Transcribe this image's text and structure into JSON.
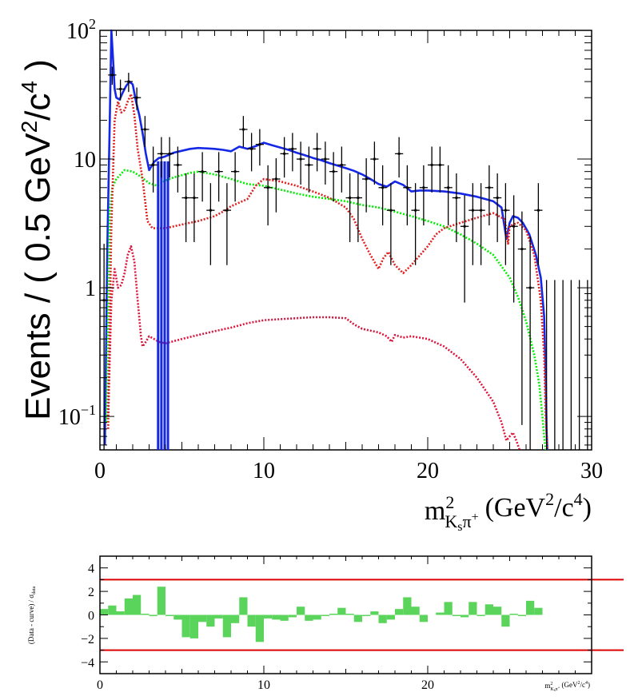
{
  "chart_data": [
    {
      "type": "line",
      "ylabel_main": "Events / ( 0.5 GeV",
      "ylabel_sup1": "2",
      "ylabel_mid": "/c",
      "ylabel_sup2": "4",
      "ylabel_end": " )",
      "xlabel_base": "m",
      "xlabel_sup": "2",
      "xlabel_sub": "K",
      "xlabel_subsub": "s",
      "xlabel_pi": "π",
      "xlabel_plus": "+",
      "xlabel_units_a": "(GeV",
      "xlabel_units_sup1": "2",
      "xlabel_units_b": "/c",
      "xlabel_units_sup2": "4",
      "xlabel_units_c": ")",
      "xlim": [
        0,
        30
      ],
      "ylim": [
        0.055,
        100
      ],
      "yscale": "log",
      "x_ticks": [
        "0",
        "10",
        "20",
        "30"
      ],
      "y_ticks": [
        {
          "value": 100,
          "base": "10",
          "exp": "2"
        },
        {
          "value": 10,
          "base": "10",
          "exp": ""
        },
        {
          "value": 1,
          "base": "1",
          "exp": ""
        },
        {
          "value": 0.1,
          "base": "10",
          "exp": "−1"
        }
      ],
      "series": [
        {
          "style": "data-points",
          "color": "#000000",
          "x": [
            0.25,
            0.75,
            1.25,
            1.75,
            2.25,
            2.75,
            3.25,
            3.75,
            4.25,
            4.75,
            5.25,
            5.75,
            6.25,
            6.75,
            7.25,
            7.75,
            8.25,
            8.75,
            9.25,
            9.75,
            10.25,
            10.75,
            11.25,
            11.75,
            12.25,
            12.75,
            13.25,
            13.75,
            14.25,
            14.75,
            15.25,
            15.75,
            16.25,
            16.75,
            17.25,
            17.75,
            18.25,
            18.75,
            19.25,
            19.75,
            20.25,
            20.75,
            21.25,
            21.75,
            22.25,
            22.75,
            23.25,
            23.75,
            24.25,
            24.75,
            25.25,
            25.75,
            26.25,
            26.75
          ],
          "y": [
            0.8,
            45,
            35,
            40,
            30,
            17,
            9,
            11,
            11,
            9,
            5,
            5,
            8,
            4,
            8,
            4,
            8,
            17,
            12,
            13,
            6,
            7,
            11,
            12,
            10,
            9,
            12,
            10,
            8,
            9,
            5,
            5,
            7,
            10,
            6,
            4,
            11,
            6,
            4,
            6,
            9,
            9,
            6,
            5,
            3,
            4,
            4,
            6,
            5,
            4,
            3,
            2,
            1,
            4
          ]
        },
        {
          "style": "solid",
          "color": "#1428e6",
          "x": [
            0.3,
            0.45,
            0.6,
            0.7,
            0.8,
            0.9,
            1.0,
            1.2,
            1.4,
            1.6,
            1.8,
            2.0,
            2.2,
            2.4,
            2.6,
            2.8,
            3.0,
            3.3,
            3.6,
            3.8,
            4.0,
            4.5,
            5.0,
            5.5,
            6.0,
            6.5,
            7.0,
            7.5,
            8.0,
            8.5,
            9.0,
            9.5,
            10.0,
            10.5,
            11.0,
            11.5,
            12.0,
            12.5,
            13.0,
            13.5,
            14.0,
            14.5,
            15.0,
            15.5,
            16.0,
            16.5,
            17.0,
            17.5,
            18.0,
            18.5,
            19.0,
            19.5,
            20.0,
            21.0,
            22.0,
            23.0,
            23.5,
            24.0,
            24.5,
            24.8,
            25.0,
            25.2,
            25.5,
            25.8,
            26.2,
            26.6,
            26.9,
            27.1,
            27.2,
            27.25,
            27.3
          ],
          "y": [
            0.06,
            2,
            20,
            100,
            60,
            35,
            30,
            29,
            33,
            37,
            40,
            38,
            28,
            22,
            16,
            11,
            8.2,
            9.5,
            10.2,
            10.3,
            10.5,
            11.2,
            11.6,
            12.0,
            12.2,
            12.1,
            12.0,
            11.8,
            11.5,
            12.5,
            12.0,
            12.6,
            13.4,
            12.8,
            12.3,
            11.8,
            11.2,
            10.7,
            10.2,
            9.8,
            9.3,
            8.9,
            8.5,
            8.1,
            7.6,
            7.0,
            6.4,
            6.1,
            6.7,
            6.3,
            5.6,
            5.7,
            5.7,
            5.6,
            5.4,
            5.1,
            4.9,
            4.7,
            4.2,
            2.4,
            3.2,
            3.6,
            3.5,
            3.2,
            2.6,
            1.8,
            1.2,
            0.6,
            0.2,
            0.08,
            0.055
          ]
        },
        {
          "style": "dotted",
          "color": "#00ee00",
          "x": [
            0.4,
            0.5,
            0.6,
            0.75,
            1.0,
            1.5,
            2.0,
            2.5,
            3.0,
            3.5,
            4.0,
            4.5,
            5.0,
            5.5,
            6.0,
            7.0,
            8.0,
            9.0,
            10.0,
            11.0,
            12.0,
            13.0,
            14.0,
            15.0,
            16.0,
            17.0,
            18.0,
            19.0,
            20.0,
            21.0,
            22.0,
            23.0,
            24.0,
            25.0,
            25.5,
            26.0,
            26.5,
            26.8,
            27.0,
            27.1,
            27.2
          ],
          "y": [
            0.09,
            0.8,
            4,
            6,
            7,
            8.2,
            8.0,
            7.3,
            6.5,
            6.2,
            6.8,
            7.2,
            7.5,
            7.8,
            8.0,
            7.6,
            7.0,
            6.4,
            6.2,
            5.8,
            5.4,
            5.1,
            4.9,
            4.7,
            4.4,
            4.2,
            3.9,
            3.6,
            3.3,
            3.0,
            2.6,
            2.2,
            1.8,
            1.2,
            0.85,
            0.55,
            0.3,
            0.18,
            0.1,
            0.07,
            0.055
          ]
        },
        {
          "style": "dotted",
          "color": "#e02020",
          "x": [
            0.5,
            0.7,
            0.9,
            1.1,
            1.3,
            1.5,
            1.7,
            1.9,
            2.1,
            2.3,
            2.6,
            2.9,
            3.2,
            3.5,
            4.0,
            5.0,
            6.0,
            7.0,
            7.5,
            8.0,
            9.0,
            9.5,
            10.0,
            11.0,
            12.0,
            13.0,
            14.0,
            15.0,
            15.5,
            16.0,
            16.5,
            17.0,
            17.3,
            17.6,
            18.0,
            18.5,
            19.0,
            20.0,
            20.5,
            21.0,
            22.0,
            23.0,
            24.0,
            24.7,
            24.9,
            25.0,
            25.2,
            25.5,
            26.0,
            26.5,
            26.9,
            27.1,
            27.2,
            27.3
          ],
          "y": [
            0.08,
            3,
            20,
            28,
            23,
            24,
            28,
            32,
            22,
            12,
            7,
            3.3,
            2.9,
            2.9,
            2.9,
            3.1,
            3.3,
            3.6,
            3.9,
            4.3,
            4.9,
            6.2,
            7.0,
            6.7,
            6.2,
            5.6,
            5.0,
            4.2,
            3.4,
            2.4,
            1.8,
            1.4,
            1.7,
            1.9,
            1.5,
            1.3,
            1.5,
            2.1,
            2.6,
            2.9,
            3.2,
            3.5,
            3.8,
            3.4,
            2.2,
            3.0,
            3.1,
            3.2,
            2.8,
            1.8,
            0.8,
            0.3,
            0.1,
            0.055
          ]
        },
        {
          "style": "dotted",
          "color": "#dc143c",
          "x": [
            0.5,
            0.7,
            0.9,
            1.1,
            1.3,
            1.5,
            1.7,
            1.9,
            2.1,
            2.3,
            2.5,
            2.6,
            2.8,
            3.0,
            3.3,
            3.6,
            4.0,
            5.0,
            6.0,
            7.0,
            8.0,
            9.0,
            10.0,
            11.0,
            12.0,
            13.0,
            14.0,
            15.0,
            15.5,
            16.0,
            17.0,
            17.5,
            17.8,
            18.0,
            18.5,
            19.0,
            19.5,
            20.0,
            21.0,
            22.0,
            23.0,
            24.0,
            24.5,
            24.8,
            25.0,
            25.2,
            25.4,
            25.5,
            25.6
          ],
          "y": [
            0.1,
            0.8,
            1.4,
            1.0,
            1.05,
            1.3,
            1.8,
            2.1,
            1.6,
            0.8,
            0.42,
            0.35,
            0.38,
            0.42,
            0.4,
            0.38,
            0.37,
            0.4,
            0.43,
            0.46,
            0.49,
            0.53,
            0.56,
            0.57,
            0.58,
            0.59,
            0.59,
            0.58,
            0.52,
            0.48,
            0.45,
            0.42,
            0.38,
            0.43,
            0.41,
            0.42,
            0.41,
            0.4,
            0.35,
            0.28,
            0.2,
            0.13,
            0.09,
            0.065,
            0.07,
            0.075,
            0.065,
            0.06,
            0.055
          ]
        }
      ]
    },
    {
      "type": "bar",
      "ylabel": "(Data - curve) / σ",
      "ylabel_sub": "data",
      "xlabel_base": "m",
      "xlabel_sup": "2",
      "xlabel_sub": "K",
      "xlabel_subsub": "s",
      "xlabel_pi": "π",
      "xlabel_plus": "+",
      "xlabel_units_a": "(GeV",
      "xlabel_units_sup1": "2",
      "xlabel_units_b": "/c",
      "xlabel_units_sup2": "4",
      "xlabel_units_c": ")",
      "xlim": [
        0,
        30
      ],
      "ylim": [
        -5,
        5
      ],
      "x_ticks": [
        "0",
        "10",
        "20"
      ],
      "y_ticks": [
        "4",
        "2",
        "0",
        "−2",
        "−4"
      ],
      "reference_lines": [
        3,
        -3
      ],
      "reference_line_color": "#dd0000",
      "bar_color": "#5ad45a",
      "bin_width": 0.5,
      "x": [
        0.25,
        0.75,
        1.25,
        1.75,
        2.25,
        2.75,
        3.25,
        3.75,
        4.25,
        4.75,
        5.25,
        5.75,
        6.25,
        6.75,
        7.25,
        7.75,
        8.25,
        8.75,
        9.25,
        9.75,
        10.25,
        10.75,
        11.25,
        11.75,
        12.25,
        12.75,
        13.25,
        13.75,
        14.25,
        14.75,
        15.25,
        15.75,
        16.25,
        16.75,
        17.25,
        17.75,
        18.25,
        18.75,
        19.25,
        19.75,
        20.25,
        20.75,
        21.25,
        21.75,
        22.25,
        22.75,
        23.25,
        23.75,
        24.25,
        24.75,
        25.25,
        25.75,
        26.25,
        26.75,
        27.25,
        27.75,
        28.25,
        28.75,
        29.25,
        29.75
      ],
      "values": [
        0.5,
        0.8,
        0.3,
        1.4,
        1.7,
        0.1,
        -0.1,
        2.4,
        -0.1,
        -0.4,
        -1.9,
        -2.0,
        -0.6,
        -1.0,
        -0.3,
        -1.9,
        -0.7,
        1.5,
        -1.0,
        -2.3,
        -0.3,
        -0.4,
        -0.5,
        -0.2,
        0.7,
        -0.5,
        -0.4,
        -0.1,
        0.1,
        0.6,
        0.1,
        -0.6,
        -0.1,
        0.3,
        -0.7,
        -0.4,
        0.5,
        1.5,
        0.7,
        -0.6,
        0.0,
        0.2,
        1.1,
        -0.1,
        -0.2,
        1.1,
        -0.1,
        0.9,
        0.7,
        -1.0,
        0.1,
        -0.1,
        1.2,
        0.6,
        0,
        0,
        0,
        0,
        0,
        0
      ]
    }
  ]
}
